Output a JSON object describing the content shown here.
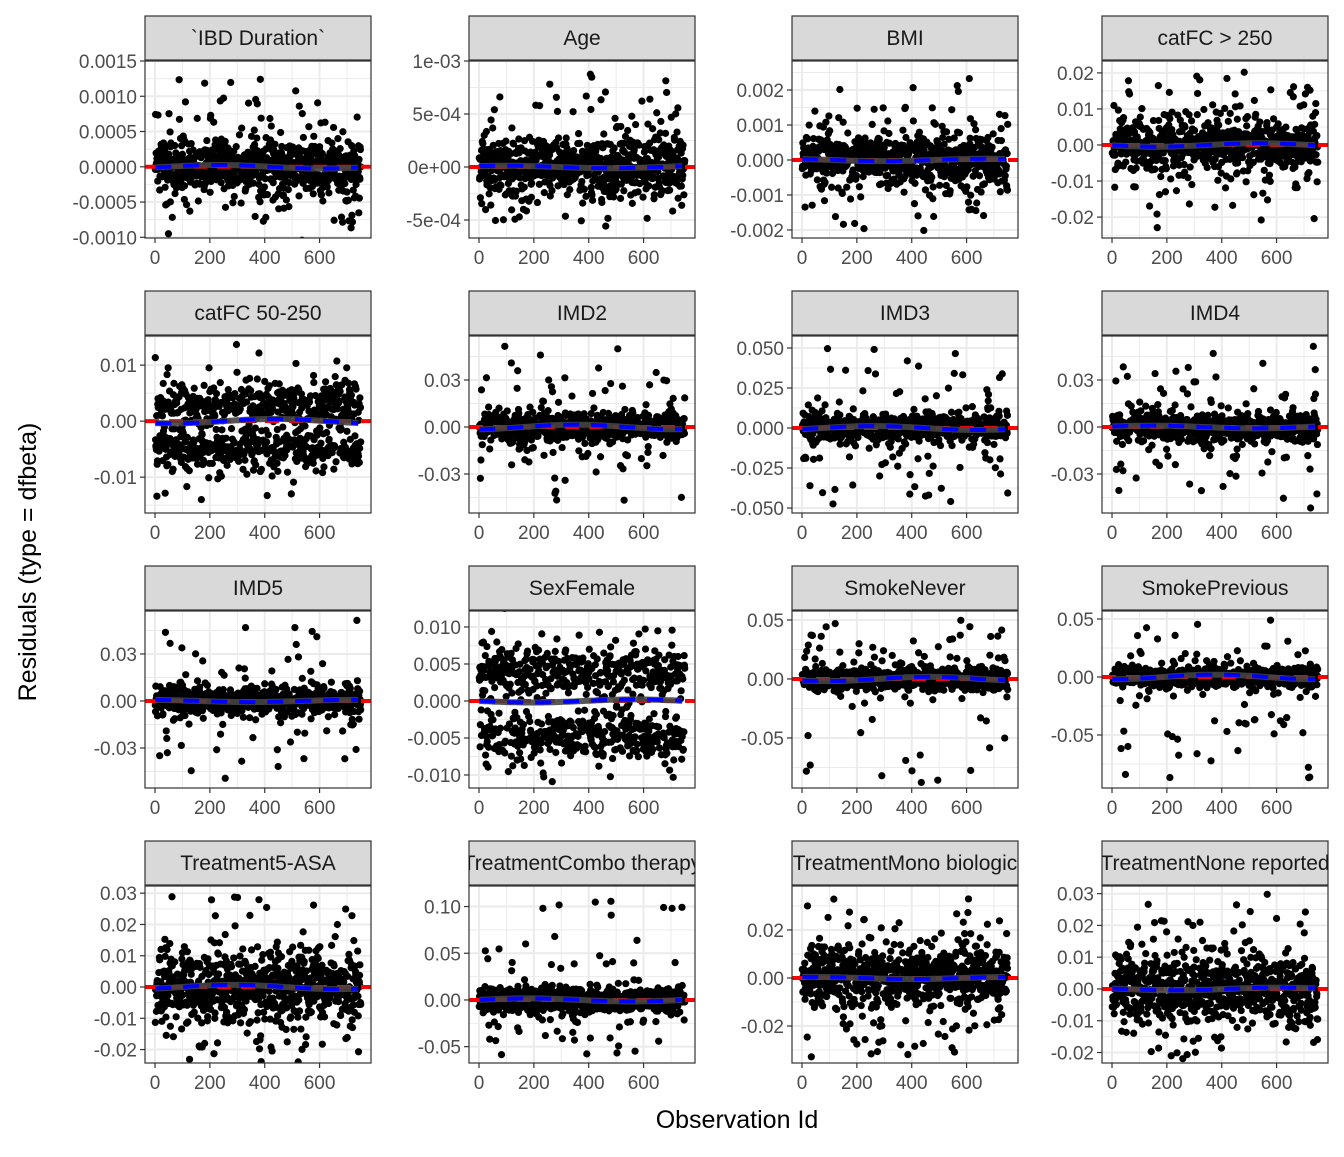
{
  "chart_data": {
    "type": "scatter",
    "xlabel": "Observation Id",
    "ylabel": "Residuals (type = dfbeta)",
    "n_observations": 750,
    "xlim": [
      -36.5,
      787.5
    ],
    "xticks": [
      0,
      200,
      400,
      600
    ],
    "xtick_labels": [
      "0",
      "200",
      "400",
      "600"
    ],
    "colors": {
      "points": "#000000",
      "reference_line": "#ff0000",
      "smooth_line": "#0000ff",
      "strip": "#d9d9d9"
    },
    "panels": [
      {
        "title": "`IBD Duration`",
        "ylim": [
          -0.00101,
          0.0015
        ],
        "yticks": [
          0.0015,
          0.001,
          0.0005,
          0,
          -0.0005,
          -0.001
        ],
        "ytick_labels": [
          "0.0015",
          "0.0010",
          "0.0005",
          "0.0000",
          "-0.0005",
          "-0.0010"
        ],
        "core_sd": 0.00017,
        "max": 0.0014,
        "min": -0.0009
      },
      {
        "title": "Age",
        "ylim": [
          -0.00067,
          0.001
        ],
        "yticks": [
          0.001,
          0.0005,
          0,
          -0.0005
        ],
        "ytick_labels": [
          "1e-03",
          "5e-04",
          "0e+00",
          "-5e-04"
        ],
        "core_sd": 0.00013,
        "max": 0.0009,
        "min": -0.00058
      },
      {
        "title": "BMI",
        "ylim": [
          -0.00223,
          0.00283
        ],
        "yticks": [
          0.002,
          0.001,
          0,
          -0.001,
          -0.002
        ],
        "ytick_labels": [
          "0.002",
          "0.001",
          "0.000",
          "-0.001",
          "-0.002"
        ],
        "core_sd": 0.0003,
        "max": 0.0026,
        "min": -0.002
      },
      {
        "title": "catFC > 250",
        "ylim": [
          -0.0258,
          0.0233
        ],
        "yticks": [
          0.02,
          0.01,
          0,
          -0.01,
          -0.02
        ],
        "ytick_labels": [
          "0.02",
          "0.01",
          "0.00",
          "-0.01",
          "-0.02"
        ],
        "core_sd": 0.003,
        "max": 0.021,
        "min": -0.023
      },
      {
        "title": "catFC 50-250",
        "ylim": [
          -0.0164,
          0.0152
        ],
        "yticks": [
          0.01,
          0,
          -0.01
        ],
        "ytick_labels": [
          "0.01",
          "0.00",
          "-0.01"
        ],
        "core_sd": 0.0018,
        "modes": [
          0.003,
          -0.005
        ],
        "max": 0.014,
        "min": -0.015
      },
      {
        "title": "IMD2",
        "ylim": [
          -0.0549,
          0.0581
        ],
        "yticks": [
          0.03,
          0,
          -0.03
        ],
        "ytick_labels": [
          "0.03",
          "0.00",
          "-0.03"
        ],
        "core_sd": 0.004,
        "max": 0.052,
        "min": -0.05
      },
      {
        "title": "IMD3",
        "ylim": [
          -0.0531,
          0.0575
        ],
        "yticks": [
          0.05,
          0.025,
          0,
          -0.025,
          -0.05
        ],
        "ytick_labels": [
          "0.050",
          "0.025",
          "0.000",
          "-0.025",
          "-0.050"
        ],
        "core_sd": 0.004,
        "max": 0.052,
        "min": -0.05
      },
      {
        "title": "IMD4",
        "ylim": [
          -0.0549,
          0.0581
        ],
        "yticks": [
          0.03,
          0,
          -0.03
        ],
        "ytick_labels": [
          "0.03",
          "0.00",
          "-0.03"
        ],
        "core_sd": 0.004,
        "max": 0.052,
        "min": -0.052
      },
      {
        "title": "IMD5",
        "ylim": [
          -0.0555,
          0.0574
        ],
        "yticks": [
          0.03,
          0,
          -0.03
        ],
        "ytick_labels": [
          "0.03",
          "0.00",
          "-0.03"
        ],
        "core_sd": 0.004,
        "max": 0.052,
        "min": -0.052
      },
      {
        "title": "SexFemale",
        "ylim": [
          -0.01176,
          0.01216
        ],
        "yticks": [
          0.01,
          0.005,
          0,
          -0.005,
          -0.01
        ],
        "ytick_labels": [
          "0.010",
          "0.005",
          "0.000",
          "-0.005",
          "-0.010"
        ],
        "core_sd": 0.0015,
        "modes": [
          0.0037,
          -0.0047
        ],
        "max": 0.011,
        "min": -0.011
      },
      {
        "title": "SmokeNever",
        "ylim": [
          -0.0924,
          0.0576
        ],
        "yticks": [
          0.05,
          0,
          -0.05
        ],
        "ytick_labels": [
          "0.05",
          "0.00",
          "-0.05"
        ],
        "core_sd": 0.004,
        "max": 0.05,
        "min": -0.088
      },
      {
        "title": "SmokePrevious",
        "ylim": [
          -0.0957,
          0.0569
        ],
        "yticks": [
          0.05,
          0,
          -0.05
        ],
        "ytick_labels": [
          "0.05",
          "0.00",
          "-0.05"
        ],
        "core_sd": 0.004,
        "max": 0.05,
        "min": -0.088
      },
      {
        "title": "Treatment5-ASA",
        "ylim": [
          -0.0243,
          0.0323
        ],
        "yticks": [
          0.03,
          0.02,
          0.01,
          0,
          -0.01,
          -0.02
        ],
        "ytick_labels": [
          "0.03",
          "0.02",
          "0.01",
          "0.00",
          "-0.01",
          "-0.02"
        ],
        "core_sd": 0.005,
        "max": 0.03,
        "min": -0.022
      },
      {
        "title": "TreatmentCombo therapy",
        "ylim": [
          -0.0675,
          0.122
        ],
        "yticks": [
          0.1,
          0.05,
          0,
          -0.05
        ],
        "ytick_labels": [
          "0.10",
          "0.05",
          "0.00",
          "-0.05"
        ],
        "core_sd": 0.006,
        "max": 0.11,
        "min": -0.06
      },
      {
        "title": "TreatmentMono biologic",
        "ylim": [
          -0.0354,
          0.0383
        ],
        "yticks": [
          0.02,
          0,
          -0.02
        ],
        "ytick_labels": [
          "0.02",
          "0.00",
          "-0.02"
        ],
        "core_sd": 0.006,
        "max": 0.034,
        "min": -0.034
      },
      {
        "title": "TreatmentNone reported",
        "ylim": [
          -0.0233,
          0.0324
        ],
        "yticks": [
          0.03,
          0.02,
          0.01,
          0,
          -0.01,
          -0.02
        ],
        "ytick_labels": [
          "0.03",
          "0.02",
          "0.01",
          "0.00",
          "-0.01",
          "-0.02"
        ],
        "core_sd": 0.005,
        "max": 0.03,
        "min": -0.022
      }
    ]
  }
}
